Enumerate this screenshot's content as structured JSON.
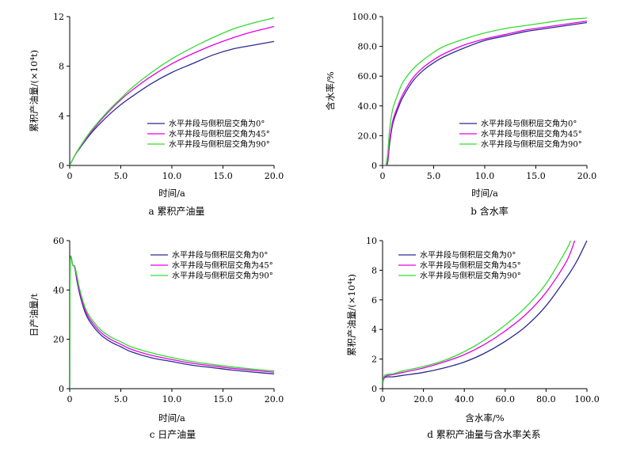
{
  "figure": {
    "series_labels": [
      "水平井段与侧积层交角为0°",
      "水平井段与侧积层交角为45°",
      "水平井段与侧积层交角为90°"
    ],
    "colors": {
      "angle_0": "#2b2b8f",
      "angle_45": "#e600e6",
      "angle_90": "#33dd33"
    }
  },
  "chart_data": [
    {
      "id": "a",
      "type": "line",
      "caption": "a 累积产油量",
      "xlabel": "时间/a",
      "ylabel": "累积产油量/(×10⁴t)",
      "xlim": [
        0,
        20
      ],
      "ylim": [
        0,
        12
      ],
      "xticks": [
        0,
        5,
        10,
        15,
        20
      ],
      "xtick_labels": [
        "0",
        "5.0",
        "10.0",
        "15.0",
        "20.0"
      ],
      "yticks": [
        0,
        4,
        8,
        12
      ],
      "ytick_labels": [
        "0",
        "4",
        "8",
        "12"
      ],
      "legend_position": "bottom-right",
      "legend": [
        "水平井段与侧积层交角为0°",
        "水平井段与侧积层交角为45°",
        "水平井段与侧积层交角为90°"
      ],
      "series": [
        {
          "name": "水平井段与侧积层交角为0°",
          "color": "#2b2b8f",
          "x": [
            0,
            0.5,
            1,
            2,
            3,
            4,
            5,
            6,
            8,
            10,
            12,
            14,
            16,
            18,
            20
          ],
          "y": [
            0,
            0.8,
            1.4,
            2.5,
            3.4,
            4.2,
            4.9,
            5.5,
            6.6,
            7.5,
            8.2,
            8.9,
            9.4,
            9.7,
            10.0
          ]
        },
        {
          "name": "水平井段与侧积层交角为45°",
          "color": "#e600e6",
          "x": [
            0,
            0.5,
            1,
            2,
            3,
            4,
            5,
            6,
            8,
            10,
            12,
            14,
            16,
            18,
            20
          ],
          "y": [
            0,
            0.8,
            1.45,
            2.6,
            3.6,
            4.5,
            5.3,
            6.0,
            7.2,
            8.2,
            9.0,
            9.7,
            10.3,
            10.8,
            11.2
          ]
        },
        {
          "name": "水平井段与侧积层交角为90°",
          "color": "#33dd33",
          "x": [
            0,
            0.5,
            1,
            2,
            3,
            4,
            5,
            6,
            8,
            10,
            12,
            14,
            16,
            18,
            20
          ],
          "y": [
            0,
            0.82,
            1.5,
            2.7,
            3.7,
            4.6,
            5.4,
            6.2,
            7.5,
            8.6,
            9.5,
            10.3,
            11.0,
            11.5,
            11.9
          ]
        }
      ]
    },
    {
      "id": "b",
      "type": "line",
      "caption": "b 含水率",
      "xlabel": "时间/a",
      "ylabel": "含水率/%",
      "xlim": [
        0,
        20
      ],
      "ylim": [
        0,
        100
      ],
      "xticks": [
        0,
        5,
        10,
        15,
        20
      ],
      "xtick_labels": [
        "0",
        "5.0",
        "10.0",
        "15.0",
        "20.0"
      ],
      "yticks": [
        0,
        20,
        40,
        60,
        80,
        100
      ],
      "ytick_labels": [
        "0",
        "20.0",
        "40.0",
        "60.0",
        "80.0",
        "100.0"
      ],
      "legend_position": "bottom-right",
      "legend": [
        "水平井段与侧积层交角为0°",
        "水平井段与侧积层交角为45°",
        "水平井段与侧积层交角为90°"
      ],
      "series": [
        {
          "name": "水平井段与侧积层交角为0°",
          "color": "#2b2b8f",
          "x": [
            0,
            0.3,
            0.5,
            0.7,
            1,
            1.5,
            2,
            3,
            4,
            5,
            6,
            8,
            10,
            12,
            14,
            16,
            18,
            20
          ],
          "y": [
            0,
            0,
            2,
            15,
            28,
            38,
            46,
            57,
            64,
            69,
            73,
            79,
            84,
            87,
            90,
            92,
            94,
            96
          ]
        },
        {
          "name": "水平井段与侧积层交角为45°",
          "color": "#e600e6",
          "x": [
            0,
            0.3,
            0.5,
            0.7,
            1,
            1.5,
            2,
            3,
            4,
            5,
            6,
            8,
            10,
            12,
            14,
            16,
            18,
            20
          ],
          "y": [
            0,
            0,
            3,
            17,
            30,
            40,
            48,
            59,
            66,
            71,
            75,
            81,
            85,
            88,
            91,
            93,
            95,
            97
          ]
        },
        {
          "name": "水平井段与侧积层交角为90°",
          "color": "#33dd33",
          "x": [
            0,
            0.3,
            0.5,
            0.7,
            1,
            1.5,
            2,
            3,
            4,
            5,
            6,
            8,
            10,
            12,
            14,
            16,
            18,
            20
          ],
          "y": [
            0,
            0,
            8,
            25,
            38,
            48,
            56,
            65,
            71,
            76,
            80,
            85,
            89,
            92,
            94,
            96,
            98,
            99
          ]
        }
      ]
    },
    {
      "id": "c",
      "type": "line",
      "caption": "c 日产油量",
      "xlabel": "时间/a",
      "ylabel": "日产油量/t",
      "xlim": [
        0,
        20
      ],
      "ylim": [
        0,
        60
      ],
      "xticks": [
        0,
        5,
        10,
        15,
        20
      ],
      "xtick_labels": [
        "0",
        "5.0",
        "10.0",
        "15.0",
        "20.0"
      ],
      "yticks": [
        0,
        20,
        40,
        60
      ],
      "ytick_labels": [
        "0",
        "20",
        "40",
        "60"
      ],
      "legend_position": "top-right",
      "legend": [
        "水平井段与侧积层交角为0°",
        "水平井段与侧积层交角为45°",
        "水平井段与侧积层交角为90°"
      ],
      "series": [
        {
          "name": "水平井段与侧积层交角为0°",
          "color": "#2b2b8f",
          "x": [
            0,
            0.05,
            0.3,
            0.5,
            0.7,
            1,
            1.5,
            2,
            3,
            4,
            5,
            6,
            8,
            10,
            12,
            14,
            16,
            18,
            20
          ],
          "y": [
            0,
            50,
            50,
            49,
            44,
            38,
            31,
            27,
            22,
            19,
            17,
            15,
            12.5,
            11,
            9.5,
            8.5,
            7.5,
            6.7,
            6.0
          ]
        },
        {
          "name": "水平井段与侧积层交角为45°",
          "color": "#e600e6",
          "x": [
            0,
            0.05,
            0.3,
            0.5,
            0.7,
            1,
            1.5,
            2,
            3,
            4,
            5,
            6,
            8,
            10,
            12,
            14,
            16,
            18,
            20
          ],
          "y": [
            0,
            50,
            50,
            49.5,
            45,
            39,
            32,
            28,
            23,
            20,
            18,
            16,
            13.5,
            11.8,
            10.3,
            9.2,
            8.2,
            7.4,
            6.7
          ]
        },
        {
          "name": "水平井段与侧积层交角为90°",
          "color": "#33dd33",
          "x": [
            0,
            0.05,
            0.3,
            0.5,
            0.7,
            1,
            1.5,
            2,
            3,
            4,
            5,
            6,
            8,
            10,
            12,
            14,
            16,
            18,
            20
          ],
          "y": [
            0,
            50,
            50,
            49.5,
            46,
            40,
            33,
            29,
            24,
            21,
            19,
            17,
            14.5,
            12.6,
            11.0,
            9.8,
            8.8,
            7.9,
            7.2
          ]
        }
      ]
    },
    {
      "id": "d",
      "type": "line",
      "caption": "d 累积产油量与含水率关系",
      "xlabel": "含水率/%",
      "ylabel": "累积产油量/(×10⁴t)",
      "xlim": [
        0,
        100
      ],
      "ylim": [
        0,
        10
      ],
      "xticks": [
        0,
        20,
        40,
        60,
        80,
        100
      ],
      "xtick_labels": [
        "0",
        "20.0",
        "40.0",
        "60.0",
        "80.0",
        "100.0"
      ],
      "yticks": [
        0,
        2,
        4,
        6,
        8,
        10
      ],
      "ytick_labels": [
        "0",
        "2",
        "4",
        "6",
        "8",
        "10"
      ],
      "legend_position": "top-left",
      "legend": [
        "水平井段与侧积层交角为0°",
        "水平井段与侧积层交角为45°",
        "水平井段与侧积层交角为90°"
      ],
      "series": [
        {
          "name": "水平井段与侧积层交角为0°",
          "color": "#2b2b8f",
          "x": [
            0,
            1,
            5,
            10,
            20,
            30,
            40,
            50,
            60,
            70,
            80,
            90,
            95,
            100
          ],
          "y": [
            0.2,
            0.75,
            0.8,
            0.9,
            1.1,
            1.4,
            1.8,
            2.4,
            3.2,
            4.2,
            5.6,
            7.5,
            8.6,
            10.0
          ]
        },
        {
          "name": "水平井段与侧积层交角为45°",
          "color": "#e600e6",
          "x": [
            0,
            1,
            5,
            10,
            20,
            30,
            40,
            50,
            60,
            70,
            80,
            90,
            94
          ],
          "y": [
            0.2,
            0.8,
            0.95,
            1.1,
            1.4,
            1.8,
            2.3,
            3.0,
            3.9,
            5.0,
            6.5,
            8.6,
            10.0
          ]
        },
        {
          "name": "水平井段与侧积层交角为90°",
          "color": "#33dd33",
          "x": [
            0,
            1,
            5,
            10,
            20,
            30,
            40,
            50,
            60,
            70,
            80,
            90,
            92
          ],
          "y": [
            0.25,
            0.9,
            1.0,
            1.2,
            1.5,
            1.9,
            2.5,
            3.3,
            4.3,
            5.5,
            7.1,
            9.4,
            10.0
          ]
        }
      ]
    }
  ]
}
